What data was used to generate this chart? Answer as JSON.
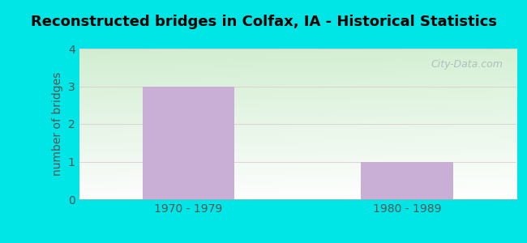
{
  "title": "Reconstructed bridges in Colfax, IA - Historical Statistics",
  "categories": [
    "1970 - 1979",
    "1980 - 1989"
  ],
  "values": [
    3,
    1
  ],
  "bar_color": "#c9aed6",
  "ylabel": "number of bridges",
  "ylim": [
    0,
    4
  ],
  "yticks": [
    0,
    1,
    2,
    3,
    4
  ],
  "background_outer": "#00e5e5",
  "grid_color": "#ddcccc",
  "title_fontsize": 13,
  "ylabel_fontsize": 10,
  "tick_fontsize": 10,
  "axis_label_color": "#555555",
  "watermark_text": "City-Data.com",
  "watermark_color": "#aabbbb",
  "plot_bg_left": "#d8efd8",
  "plot_bg_right": "#f5fff5"
}
